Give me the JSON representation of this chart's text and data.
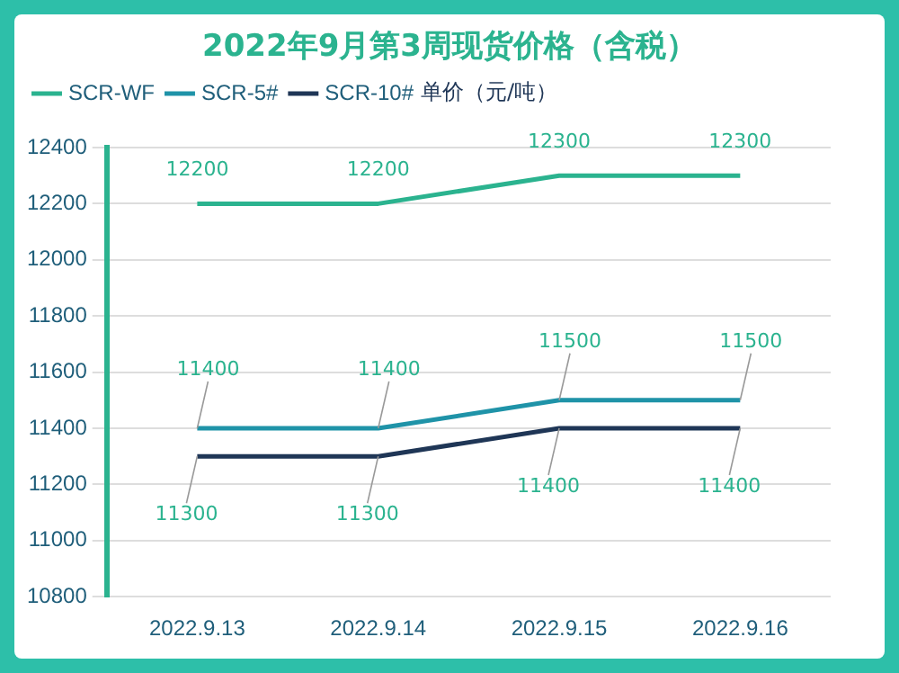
{
  "chart_data": {
    "type": "line",
    "title": "2022年9月第3周现货价格（含税）",
    "ylabel": "单价（元/吨）",
    "categories": [
      "2022.9.13",
      "2022.9.14",
      "2022.9.15",
      "2022.9.16"
    ],
    "series": [
      {
        "name": "SCR-WF",
        "color": "#2bb38f",
        "values": [
          12200,
          12200,
          12300,
          12300
        ]
      },
      {
        "name": "SCR-5#",
        "color": "#1f93a8",
        "values": [
          11400,
          11400,
          11500,
          11500
        ]
      },
      {
        "name": "SCR-10#",
        "color": "#1f3656",
        "values": [
          11300,
          11300,
          11400,
          11400
        ]
      }
    ],
    "ylim": [
      10800,
      12400
    ],
    "yticks": [
      10800,
      11000,
      11200,
      11400,
      11600,
      11800,
      12000,
      12200,
      12400
    ],
    "grid": "y",
    "legend": "top",
    "marker": "none",
    "line_style": "solid",
    "data_labels": true
  }
}
